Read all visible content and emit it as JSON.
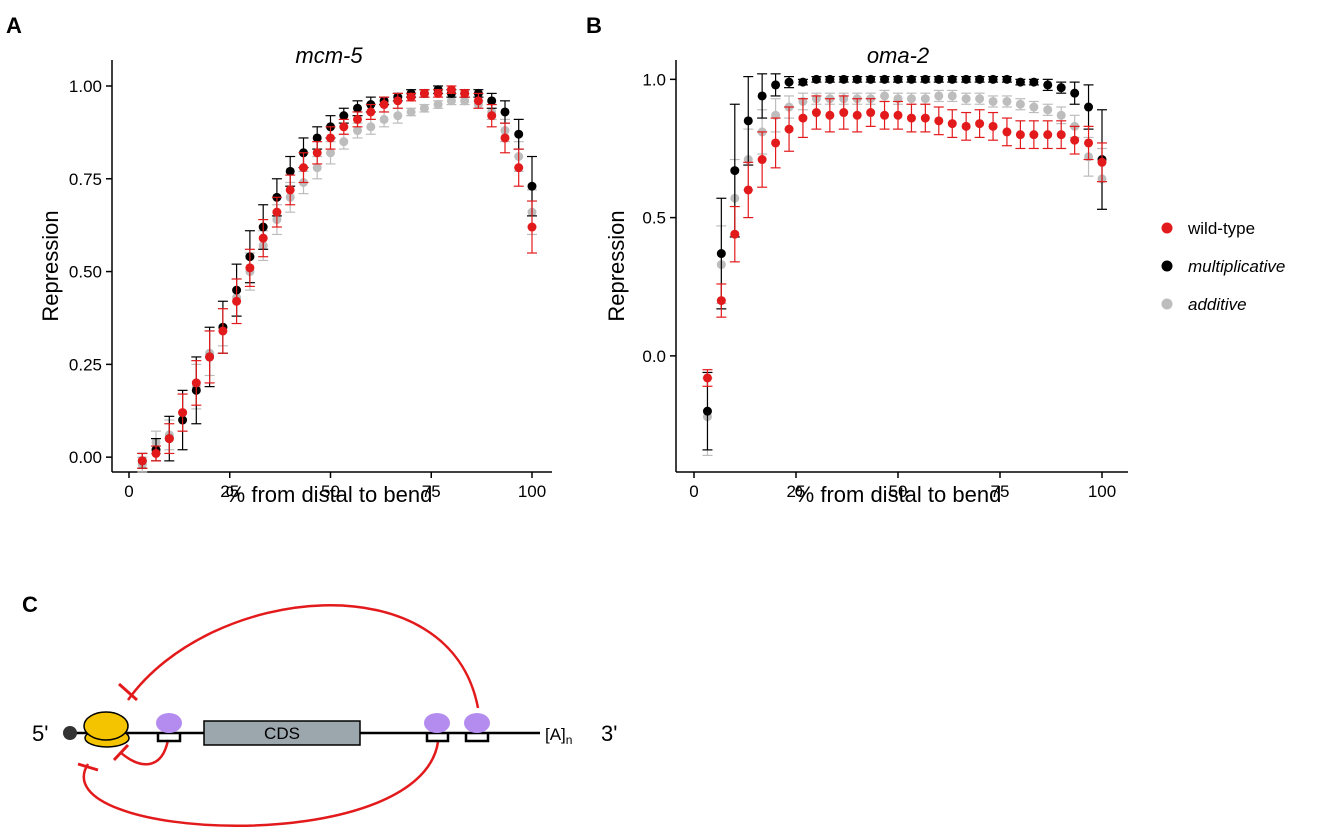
{
  "panels": {
    "A": "A",
    "B": "B",
    "C": "C"
  },
  "colors": {
    "wild_type": "#e31a1c",
    "multiplicative": "#000000",
    "additive": "#bdbdbd",
    "arc": "#e31a1c",
    "ribosome": "#f5c400",
    "protein": "#b48cf0",
    "cds": "#9ca6ad"
  },
  "chart_data": [
    {
      "type": "scatter",
      "title": "mcm-5",
      "xlabel": "% from distal to bend",
      "ylabel": "Repression",
      "xlim": [
        0,
        100
      ],
      "ylim": [
        -0.04,
        1.07
      ],
      "xticks": [
        0,
        25,
        50,
        75,
        100
      ],
      "yticks": [
        0.0,
        0.25,
        0.5,
        0.75,
        1.0
      ],
      "ytick_labels": [
        "0.00",
        "0.25",
        "0.50",
        "0.75",
        "1.00"
      ],
      "x": [
        3.3,
        6.7,
        10,
        13.3,
        16.7,
        20,
        23.3,
        26.7,
        30,
        33.3,
        36.7,
        40,
        43.3,
        46.7,
        50,
        53.3,
        56.7,
        60,
        63.3,
        66.7,
        70,
        73.3,
        76.7,
        80,
        83.3,
        86.7,
        90,
        93.3,
        96.7,
        100
      ],
      "series": [
        {
          "name": "wild-type",
          "values": [
            -0.01,
            0.01,
            0.05,
            0.12,
            0.2,
            0.27,
            0.34,
            0.42,
            0.51,
            0.59,
            0.66,
            0.72,
            0.78,
            0.82,
            0.86,
            0.89,
            0.91,
            0.93,
            0.95,
            0.96,
            0.97,
            0.98,
            0.98,
            0.99,
            0.98,
            0.96,
            0.92,
            0.86,
            0.78,
            0.62
          ],
          "errors": [
            0.02,
            0.02,
            0.04,
            0.05,
            0.06,
            0.07,
            0.06,
            0.06,
            0.05,
            0.05,
            0.04,
            0.04,
            0.04,
            0.03,
            0.03,
            0.02,
            0.02,
            0.02,
            0.02,
            0.02,
            0.01,
            0.01,
            0.01,
            0.01,
            0.01,
            0.02,
            0.03,
            0.04,
            0.05,
            0.07
          ]
        },
        {
          "name": "multiplicative",
          "values": [
            -0.01,
            0.02,
            0.05,
            0.1,
            0.18,
            0.27,
            0.35,
            0.45,
            0.54,
            0.62,
            0.7,
            0.77,
            0.82,
            0.86,
            0.89,
            0.92,
            0.94,
            0.95,
            0.96,
            0.97,
            0.98,
            0.98,
            0.99,
            0.98,
            0.98,
            0.98,
            0.96,
            0.93,
            0.87,
            0.73
          ],
          "errors": [
            0.02,
            0.03,
            0.06,
            0.08,
            0.09,
            0.08,
            0.07,
            0.07,
            0.07,
            0.06,
            0.05,
            0.04,
            0.04,
            0.03,
            0.03,
            0.02,
            0.02,
            0.02,
            0.01,
            0.01,
            0.01,
            0.01,
            0.01,
            0.01,
            0.01,
            0.01,
            0.02,
            0.03,
            0.04,
            0.08
          ]
        },
        {
          "name": "additive",
          "values": [
            -0.02,
            0.04,
            0.06,
            0.12,
            0.19,
            0.28,
            0.35,
            0.43,
            0.5,
            0.57,
            0.64,
            0.7,
            0.74,
            0.78,
            0.82,
            0.85,
            0.88,
            0.89,
            0.91,
            0.92,
            0.93,
            0.94,
            0.95,
            0.96,
            0.96,
            0.95,
            0.93,
            0.88,
            0.81,
            0.66
          ],
          "errors": [
            0.02,
            0.03,
            0.04,
            0.05,
            0.06,
            0.06,
            0.05,
            0.05,
            0.05,
            0.04,
            0.04,
            0.04,
            0.03,
            0.03,
            0.03,
            0.02,
            0.02,
            0.02,
            0.02,
            0.02,
            0.01,
            0.01,
            0.01,
            0.01,
            0.01,
            0.01,
            0.02,
            0.03,
            0.04,
            0.06
          ]
        }
      ]
    },
    {
      "type": "scatter",
      "title": "oma-2",
      "xlabel": "% from distal to bend",
      "ylabel": "Repression",
      "xlim": [
        0,
        100
      ],
      "ylim": [
        -0.42,
        1.07
      ],
      "xticks": [
        0,
        25,
        50,
        75,
        100
      ],
      "yticks": [
        0.0,
        0.5,
        1.0
      ],
      "ytick_labels": [
        "0.0",
        "0.5",
        "1.0"
      ],
      "x": [
        3.3,
        6.7,
        10,
        13.3,
        16.7,
        20,
        23.3,
        26.7,
        30,
        33.3,
        36.7,
        40,
        43.3,
        46.7,
        50,
        53.3,
        56.7,
        60,
        63.3,
        66.7,
        70,
        73.3,
        76.7,
        80,
        83.3,
        86.7,
        90,
        93.3,
        96.7,
        100
      ],
      "series": [
        {
          "name": "wild-type",
          "values": [
            -0.08,
            0.2,
            0.44,
            0.6,
            0.71,
            0.77,
            0.82,
            0.86,
            0.88,
            0.87,
            0.88,
            0.87,
            0.88,
            0.87,
            0.87,
            0.86,
            0.86,
            0.85,
            0.84,
            0.83,
            0.84,
            0.83,
            0.81,
            0.8,
            0.8,
            0.8,
            0.8,
            0.78,
            0.77,
            0.7
          ],
          "errors": [
            0.03,
            0.06,
            0.1,
            0.1,
            0.1,
            0.09,
            0.08,
            0.07,
            0.06,
            0.06,
            0.06,
            0.06,
            0.05,
            0.05,
            0.05,
            0.05,
            0.05,
            0.05,
            0.05,
            0.05,
            0.05,
            0.05,
            0.05,
            0.05,
            0.05,
            0.05,
            0.05,
            0.05,
            0.06,
            0.07
          ]
        },
        {
          "name": "multiplicative",
          "values": [
            -0.2,
            0.37,
            0.67,
            0.85,
            0.94,
            0.98,
            0.99,
            0.99,
            1.0,
            1.0,
            1.0,
            1.0,
            1.0,
            1.0,
            1.0,
            1.0,
            1.0,
            1.0,
            1.0,
            1.0,
            1.0,
            1.0,
            1.0,
            0.99,
            0.99,
            0.98,
            0.97,
            0.95,
            0.9,
            0.71
          ],
          "errors": [
            0.14,
            0.2,
            0.24,
            0.16,
            0.08,
            0.04,
            0.02,
            0.01,
            0.01,
            0.01,
            0.01,
            0.01,
            0.01,
            0.01,
            0.01,
            0.01,
            0.01,
            0.01,
            0.01,
            0.01,
            0.01,
            0.01,
            0.01,
            0.01,
            0.01,
            0.02,
            0.02,
            0.04,
            0.08,
            0.18
          ]
        },
        {
          "name": "additive",
          "values": [
            -0.22,
            0.33,
            0.57,
            0.71,
            0.81,
            0.87,
            0.9,
            0.92,
            0.93,
            0.93,
            0.93,
            0.93,
            0.93,
            0.94,
            0.93,
            0.93,
            0.93,
            0.94,
            0.94,
            0.93,
            0.93,
            0.92,
            0.92,
            0.91,
            0.9,
            0.89,
            0.87,
            0.83,
            0.72,
            0.64
          ],
          "errors": [
            0.14,
            0.14,
            0.14,
            0.11,
            0.08,
            0.06,
            0.04,
            0.03,
            0.02,
            0.02,
            0.02,
            0.02,
            0.02,
            0.02,
            0.02,
            0.02,
            0.02,
            0.02,
            0.02,
            0.02,
            0.02,
            0.02,
            0.02,
            0.02,
            0.02,
            0.02,
            0.03,
            0.04,
            0.07,
            0.11
          ]
        }
      ]
    }
  ],
  "legend": {
    "placement": "right",
    "items": [
      {
        "label": "wild-type",
        "color": "#e31a1c",
        "italic": false
      },
      {
        "label": "multiplicative",
        "color": "#000000",
        "italic": true
      },
      {
        "label": "additive",
        "color": "#bdbdbd",
        "italic": true
      }
    ]
  },
  "diagram": {
    "five_prime": "5'",
    "three_prime": "3'",
    "cds_label": "CDS",
    "polya_base": "[A]",
    "polya_sub": "n"
  }
}
